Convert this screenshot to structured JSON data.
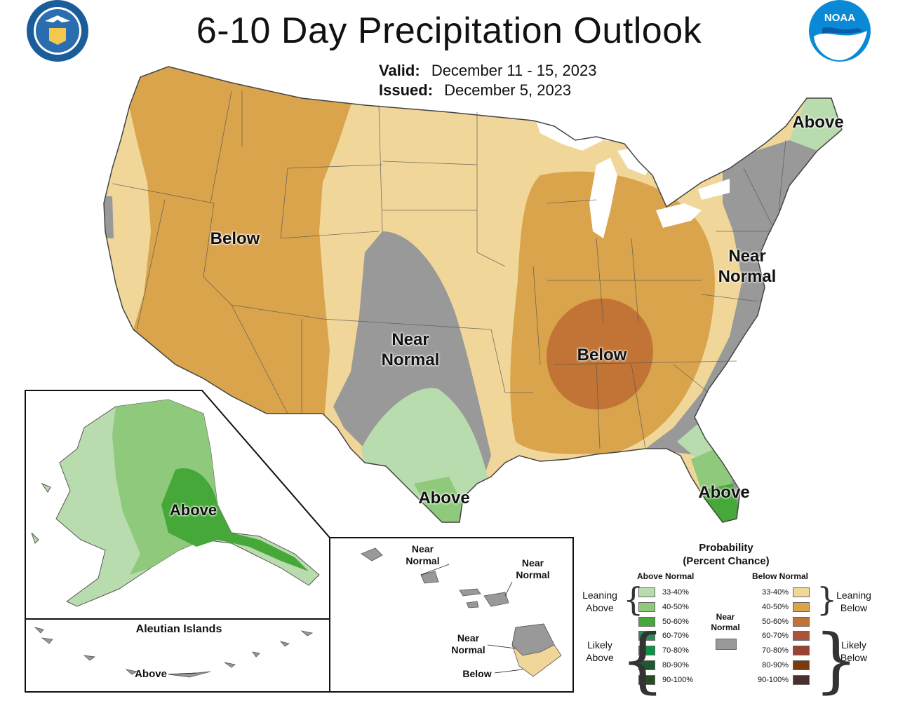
{
  "header": {
    "title": "6-10 Day Precipitation Outlook",
    "valid_label": "Valid:",
    "valid_value": "December 11 - 15, 2023",
    "issued_label": "Issued:",
    "issued_value": "December 5, 2023"
  },
  "logos": {
    "doc_seal_text": "DEPARTMENT OF COMMERCE · UNITED STATES OF AMERICA",
    "noaa_text": "NOAA"
  },
  "colors": {
    "below_33": "#f1d699",
    "below_40": "#d9a44c",
    "below_50": "#c17435",
    "near": "#999999",
    "above_33": "#b8dcae",
    "above_40": "#8ec97c",
    "above_50": "#47a83a"
  },
  "conus_labels": {
    "west_below": "Below",
    "plains_near_1": "Near",
    "plains_near_2": "Normal",
    "east_below": "Below",
    "texas_above": "Above",
    "florida_above": "Above",
    "maine_above": "Above",
    "east_near_1": "Near",
    "east_near_2": "Normal"
  },
  "alaska": {
    "label": "Above",
    "aleutian_title": "Aleutian Islands",
    "aleutian_label": "Above"
  },
  "hawaii": {
    "near_1a": "Near",
    "near_1b": "Normal",
    "near_2a": "Near",
    "near_2b": "Normal",
    "near_3a": "Near",
    "near_3b": "Normal",
    "below": "Below"
  },
  "legend": {
    "title_1": "Probability",
    "title_2": "(Percent Chance)",
    "above_header": "Above Normal",
    "below_header": "Below Normal",
    "near_1": "Near",
    "near_2": "Normal",
    "leaning_above_1": "Leaning",
    "leaning_above_2": "Above",
    "likely_above_1": "Likely",
    "likely_above_2": "Above",
    "leaning_below_1": "Leaning",
    "leaning_below_2": "Below",
    "likely_below_1": "Likely",
    "likely_below_2": "Below",
    "above_rows": [
      {
        "range": "33-40%",
        "color": "#b8dcae"
      },
      {
        "range": "40-50%",
        "color": "#8ec97c"
      },
      {
        "range": "50-60%",
        "color": "#47a83a"
      },
      {
        "range": "60-70%",
        "color": "#2e8b57"
      },
      {
        "range": "70-80%",
        "color": "#0d9246"
      },
      {
        "range": "80-90%",
        "color": "#1e5a31"
      },
      {
        "range": "90-100%",
        "color": "#264d1f"
      }
    ],
    "below_rows": [
      {
        "range": "33-40%",
        "color": "#f1d699"
      },
      {
        "range": "40-50%",
        "color": "#d9a44c"
      },
      {
        "range": "50-60%",
        "color": "#c17435"
      },
      {
        "range": "60-70%",
        "color": "#a8533a"
      },
      {
        "range": "70-80%",
        "color": "#9b4133"
      },
      {
        "range": "80-90%",
        "color": "#7a3b0c"
      },
      {
        "range": "90-100%",
        "color": "#4b2e2e"
      }
    ]
  }
}
